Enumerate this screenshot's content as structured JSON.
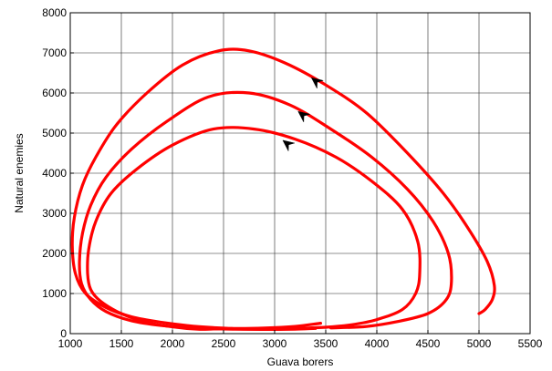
{
  "chart_data": {
    "type": "line",
    "title": "",
    "xlabel": "Guava borers",
    "ylabel": "Natural enemies",
    "xlim": [
      1000,
      5500
    ],
    "ylim": [
      0,
      8000
    ],
    "xticks": [
      1000,
      1500,
      2000,
      2500,
      3000,
      3500,
      4000,
      4500,
      5000,
      5500
    ],
    "yticks": [
      0,
      1000,
      2000,
      3000,
      4000,
      5000,
      6000,
      7000,
      8000
    ],
    "grid": true,
    "line_color": "#ff0000",
    "arrow_color": "#000000",
    "series": [
      {
        "x": [
          3400,
          3200,
          2950,
          2700,
          2550,
          2400,
          2250,
          2000,
          1750,
          1500,
          1300,
          1200,
          1170,
          1180,
          1250,
          1400,
          1650,
          2000,
          2400,
          2800,
          3200,
          3600,
          3950,
          4250,
          4400,
          4420,
          4380,
          4250,
          4000,
          3750,
          3500,
          3200
        ],
        "y": [
          130,
          110,
          105,
          110,
          120,
          115,
          110,
          170,
          280,
          500,
          800,
          1100,
          1500,
          2100,
          2800,
          3500,
          4100,
          4700,
          5100,
          5100,
          4850,
          4400,
          3800,
          3100,
          2300,
          1500,
          1000,
          600,
          350,
          220,
          160,
          130
        ],
        "arrows": [
          {
            "x": 3080,
            "y": 4820
          }
        ]
      },
      {
        "x": [
          3200,
          2850,
          2600,
          2400,
          2150,
          1900,
          1600,
          1350,
          1200,
          1110,
          1090,
          1120,
          1200,
          1350,
          1600,
          1950,
          2350,
          2750,
          3150,
          3550,
          3950,
          4300,
          4550,
          4700,
          4730,
          4680,
          4500,
          4200,
          3900,
          3550
        ],
        "y": [
          120,
          110,
          110,
          120,
          150,
          200,
          320,
          550,
          850,
          1250,
          1800,
          2500,
          3200,
          3900,
          4600,
          5300,
          5900,
          6000,
          5700,
          5100,
          4400,
          3600,
          2800,
          2000,
          1300,
          850,
          500,
          300,
          180,
          140
        ],
        "arrows": [
          {
            "x": 3230,
            "y": 5540
          }
        ]
      },
      {
        "x": [
          3450,
          3200,
          2900,
          2600,
          2400,
          2150,
          1900,
          1600,
          1350,
          1150,
          1050,
          1020,
          1040,
          1120,
          1250,
          1450,
          1750,
          2100,
          2450,
          2750,
          3100,
          3500,
          3900,
          4300,
          4650,
          4900,
          5080,
          5150,
          5130,
          5060,
          5000
        ],
        "y": [
          260,
          180,
          140,
          130,
          150,
          200,
          280,
          420,
          650,
          1000,
          1500,
          2200,
          2900,
          3700,
          4400,
          5200,
          6000,
          6700,
          7050,
          7050,
          6750,
          6200,
          5500,
          4500,
          3500,
          2600,
          1800,
          1200,
          850,
          600,
          500
        ],
        "arrows": [
          {
            "x": 3360,
            "y": 6380
          }
        ]
      }
    ]
  }
}
